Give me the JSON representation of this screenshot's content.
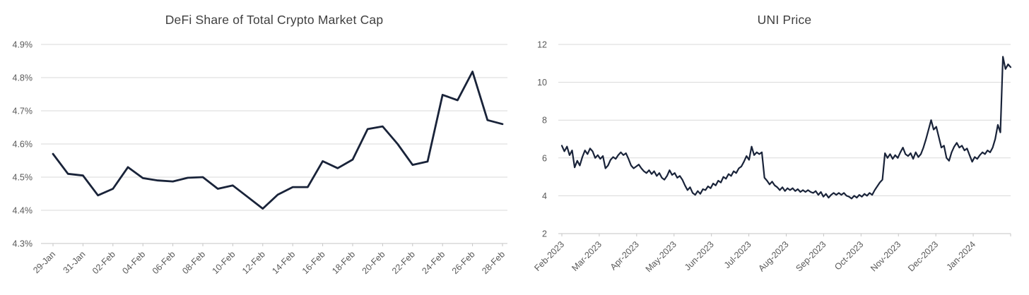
{
  "page_background": "#ffffff",
  "chart_data": [
    {
      "id": "defi-share",
      "type": "line",
      "title": "DeFi Share of Total Crypto Market Cap",
      "line_color": "#192339",
      "grid_color": "#d9d9d9",
      "axis_color": "#c6c6c6",
      "label_color": "#595959",
      "title_color": "#3f3f3f",
      "legend": "none",
      "grid": "horizontal",
      "y_ticks": [
        "4.9%",
        "4.8%",
        "4.7%",
        "4.6%",
        "4.5%",
        "4.4%",
        "4.3%"
      ],
      "ylim": [
        4.3,
        4.9
      ],
      "x_labels": [
        "29-Jan",
        "31-Jan",
        "02-Feb",
        "04-Feb",
        "06-Feb",
        "08-Feb",
        "10-Feb",
        "12-Feb",
        "14-Feb",
        "16-Feb",
        "18-Feb",
        "20-Feb",
        "22-Feb",
        "24-Feb",
        "26-Feb",
        "28-Feb"
      ],
      "x_label_every_n_points": 2,
      "x_label_rotation_deg": -45,
      "values": [
        4.57,
        4.51,
        4.505,
        4.445,
        4.465,
        4.53,
        4.497,
        4.49,
        4.487,
        4.498,
        4.5,
        4.465,
        4.475,
        4.44,
        4.405,
        4.447,
        4.47,
        4.47,
        4.548,
        4.527,
        4.553,
        4.645,
        4.653,
        4.6,
        4.537,
        4.547,
        4.748,
        4.732,
        4.818,
        4.672,
        4.66
      ]
    },
    {
      "id": "uni-price",
      "type": "line",
      "title": "UNI Price",
      "line_color": "#192339",
      "grid_color": "#d9d9d9",
      "axis_color": "#c6c6c6",
      "label_color": "#595959",
      "title_color": "#3f3f3f",
      "legend": "none",
      "grid": "horizontal",
      "y_ticks": [
        "12",
        "10",
        "8",
        "6",
        "4",
        "2"
      ],
      "ylim": [
        2,
        12
      ],
      "x_labels": [
        "Feb-2023",
        "Mar-2023",
        "Apr-2023",
        "May-2023",
        "Jun-2023",
        "Jul-2023",
        "Aug-2023",
        "Sep-2023",
        "Oct-2023",
        "Nov-2023",
        "Dec-2023",
        "Jan-2024"
      ],
      "x_label_rotation_deg": -45,
      "month_tick_count": 13,
      "values": [
        6.65,
        6.35,
        6.6,
        6.15,
        6.4,
        5.5,
        5.85,
        5.6,
        6.05,
        6.4,
        6.2,
        6.5,
        6.35,
        6.0,
        6.15,
        5.95,
        6.1,
        5.45,
        5.6,
        5.9,
        6.05,
        5.95,
        6.15,
        6.3,
        6.15,
        6.25,
        5.95,
        5.6,
        5.45,
        5.55,
        5.65,
        5.45,
        5.3,
        5.2,
        5.35,
        5.15,
        5.3,
        5.05,
        5.2,
        4.95,
        4.85,
        5.05,
        5.35,
        5.1,
        5.2,
        4.95,
        5.05,
        4.85,
        4.55,
        4.3,
        4.45,
        4.15,
        4.05,
        4.25,
        4.1,
        4.35,
        4.3,
        4.5,
        4.4,
        4.65,
        4.55,
        4.8,
        4.7,
        5.0,
        4.9,
        5.15,
        5.05,
        5.3,
        5.2,
        5.45,
        5.55,
        5.8,
        6.1,
        5.9,
        6.6,
        6.15,
        6.3,
        6.2,
        6.3,
        4.95,
        4.8,
        4.6,
        4.75,
        4.55,
        4.45,
        4.3,
        4.45,
        4.25,
        4.4,
        4.3,
        4.4,
        4.25,
        4.35,
        4.2,
        4.3,
        4.2,
        4.3,
        4.2,
        4.15,
        4.25,
        4.05,
        4.2,
        3.95,
        4.1,
        3.9,
        4.05,
        4.15,
        4.05,
        4.15,
        4.05,
        4.15,
        4.0,
        3.95,
        3.85,
        4.0,
        3.9,
        4.05,
        3.95,
        4.1,
        4.0,
        4.15,
        4.05,
        4.3,
        4.5,
        4.7,
        4.85,
        6.25,
        6.0,
        6.2,
        5.95,
        6.15,
        6.0,
        6.3,
        6.55,
        6.2,
        6.1,
        6.25,
        5.95,
        6.3,
        6.05,
        6.2,
        6.55,
        7.0,
        7.5,
        8.0,
        7.5,
        7.65,
        7.1,
        6.55,
        6.65,
        6.0,
        5.85,
        6.3,
        6.6,
        6.8,
        6.55,
        6.65,
        6.4,
        6.5,
        6.15,
        5.8,
        6.05,
        5.95,
        6.15,
        6.3,
        6.2,
        6.4,
        6.3,
        6.55,
        7.0,
        7.75,
        7.35,
        11.35,
        10.7,
        10.95,
        10.8
      ]
    }
  ]
}
